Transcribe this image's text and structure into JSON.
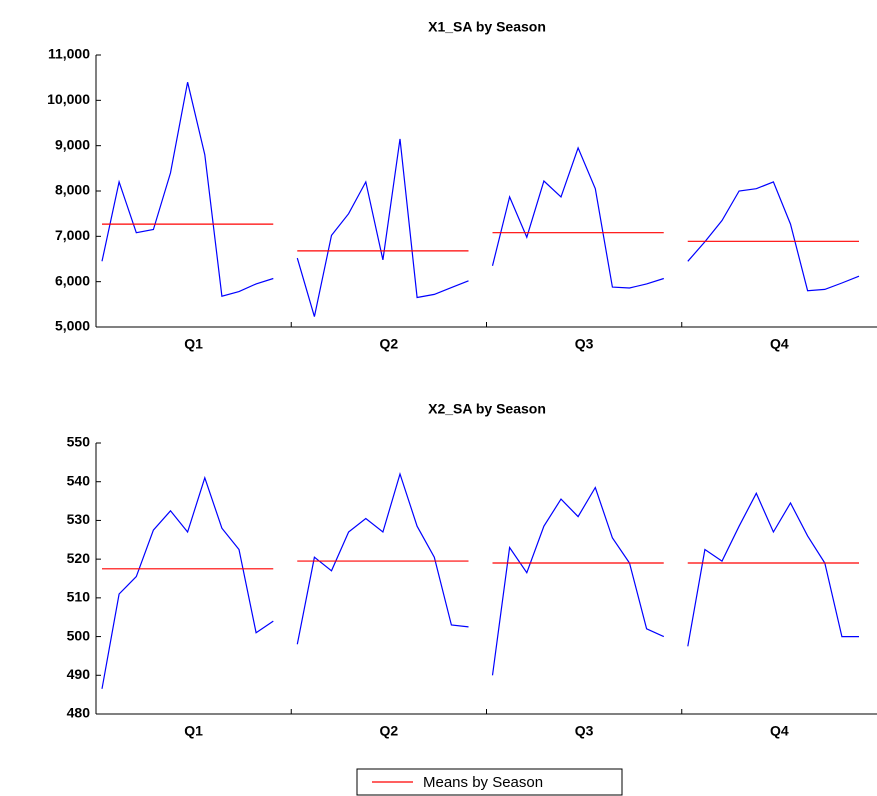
{
  "chart_data": [
    {
      "type": "seasonal",
      "title": "X1_SA by Season",
      "line_color": "#0000ff",
      "mean_color": "#ff0000",
      "ylim": [
        5000,
        11000
      ],
      "yticks": [
        {
          "value": 5000,
          "label": "5,000"
        },
        {
          "value": 6000,
          "label": "6,000"
        },
        {
          "value": 7000,
          "label": "7,000"
        },
        {
          "value": 8000,
          "label": "8,000"
        },
        {
          "value": 9000,
          "label": "9,000"
        },
        {
          "value": 10000,
          "label": "10,000"
        },
        {
          "value": 11000,
          "label": "11,000"
        }
      ],
      "seasons": [
        {
          "label": "Q1",
          "values": [
            6450,
            8200,
            7080,
            7150,
            8400,
            10400,
            8800,
            5680,
            5780,
            5950,
            6070
          ],
          "mean": 7270
        },
        {
          "label": "Q2",
          "values": [
            6520,
            5230,
            7020,
            7500,
            8200,
            6480,
            9150,
            5650,
            5720,
            5870,
            6020
          ],
          "mean": 6680
        },
        {
          "label": "Q3",
          "values": [
            6350,
            7870,
            6980,
            8220,
            7870,
            8950,
            8050,
            5880,
            5860,
            5950,
            6070
          ],
          "mean": 7080
        },
        {
          "label": "Q4",
          "values": [
            6450,
            6880,
            7350,
            8000,
            8050,
            8200,
            7270,
            5800,
            5830,
            5970,
            6120
          ],
          "mean": 6890
        }
      ]
    },
    {
      "type": "seasonal",
      "title": "X2_SA by Season",
      "line_color": "#0000ff",
      "mean_color": "#ff0000",
      "ylim": [
        480,
        550
      ],
      "yticks": [
        480,
        490,
        500,
        510,
        520,
        530,
        540,
        550
      ],
      "seasons": [
        {
          "label": "Q1",
          "values": [
            486.5,
            511,
            515.5,
            527.5,
            532.5,
            527,
            541,
            528,
            522.5,
            501,
            504
          ],
          "mean": 517.5
        },
        {
          "label": "Q2",
          "values": [
            498,
            520.5,
            517,
            527,
            530.5,
            527,
            542,
            528.5,
            520.5,
            503,
            502.5
          ],
          "mean": 519.5
        },
        {
          "label": "Q3",
          "values": [
            490,
            523,
            516.5,
            528.5,
            535.5,
            531,
            538.5,
            525.5,
            519,
            502,
            500
          ],
          "mean": 519
        },
        {
          "label": "Q4",
          "values": [
            497.5,
            522.5,
            519.5,
            528.5,
            537,
            527,
            534.5,
            526,
            519,
            500,
            500
          ],
          "mean": 519
        }
      ]
    }
  ],
  "legend": {
    "label": "Means by Season",
    "color": "#ff0000"
  }
}
